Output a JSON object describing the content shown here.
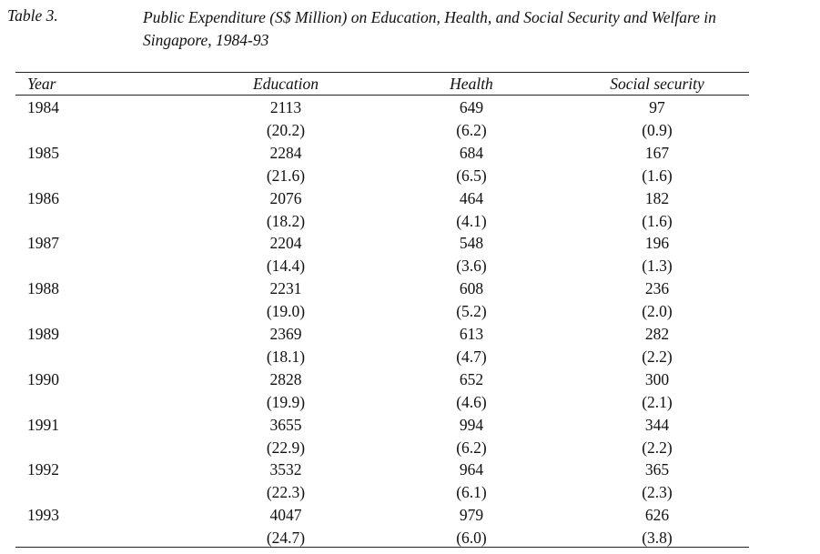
{
  "table_label": "Table 3.",
  "caption_line1": "Public Expenditure (S$ Million) on Education, Health, and Social Security and Welfare in",
  "caption_line2": "Singapore, 1984-93",
  "columns": [
    "Year",
    "Education",
    "Health",
    "Social security"
  ],
  "rows": [
    {
      "year": "1984",
      "education": "2113",
      "health": "649",
      "social": "97",
      "education_pct": "(20.2)",
      "health_pct": "(6.2)",
      "social_pct": "(0.9)"
    },
    {
      "year": "1985",
      "education": "2284",
      "health": "684",
      "social": "167",
      "education_pct": "(21.6)",
      "health_pct": "(6.5)",
      "social_pct": "(1.6)"
    },
    {
      "year": "1986",
      "education": "2076",
      "health": "464",
      "social": "182",
      "education_pct": "(18.2)",
      "health_pct": "(4.1)",
      "social_pct": "(1.6)"
    },
    {
      "year": "1987",
      "education": "2204",
      "health": "548",
      "social": "196",
      "education_pct": "(14.4)",
      "health_pct": "(3.6)",
      "social_pct": "(1.3)"
    },
    {
      "year": "1988",
      "education": "2231",
      "health": "608",
      "social": "236",
      "education_pct": "(19.0)",
      "health_pct": "(5.2)",
      "social_pct": "(2.0)"
    },
    {
      "year": "1989",
      "education": "2369",
      "health": "613",
      "social": "282",
      "education_pct": "(18.1)",
      "health_pct": "(4.7)",
      "social_pct": "(2.2)"
    },
    {
      "year": "1990",
      "education": "2828",
      "health": "652",
      "social": "300",
      "education_pct": "(19.9)",
      "health_pct": "(4.6)",
      "social_pct": "(2.1)"
    },
    {
      "year": "1991",
      "education": "3655",
      "health": "994",
      "social": "344",
      "education_pct": "(22.9)",
      "health_pct": "(6.2)",
      "social_pct": "(2.2)"
    },
    {
      "year": "1992",
      "education": "3532",
      "health": "964",
      "social": "365",
      "education_pct": "(22.3)",
      "health_pct": "(6.1)",
      "social_pct": "(2.3)"
    },
    {
      "year": "1993",
      "education": "4047",
      "health": "979",
      "social": "626",
      "education_pct": "(24.7)",
      "health_pct": "(6.0)",
      "social_pct": "(3.8)"
    }
  ]
}
